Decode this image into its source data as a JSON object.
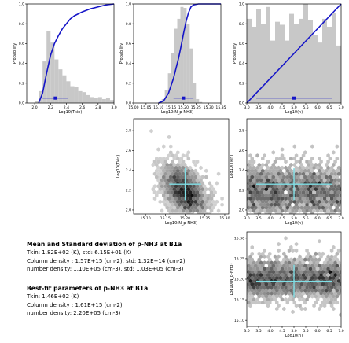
{
  "chart_data": [
    {
      "id": "hist_tkin",
      "type": "histogram+cdf",
      "xlabel": "Log10(Tkin)",
      "ylabel": "Probability",
      "xlim": [
        1.9,
        3.0
      ],
      "ylim": [
        0,
        1.0
      ],
      "xticks": [
        "2.0",
        "2.2",
        "2.4",
        "2.6",
        "2.8",
        "3.0"
      ],
      "yticks": [
        "0.0",
        "0.2",
        "0.4",
        "0.6",
        "0.8",
        "1.0"
      ],
      "bin_edges": [
        1.9,
        1.95,
        2.0,
        2.05,
        2.1,
        2.15,
        2.2,
        2.25,
        2.3,
        2.35,
        2.4,
        2.45,
        2.5,
        2.55,
        2.6,
        2.65,
        2.7,
        2.75,
        2.8,
        2.85,
        2.9,
        2.95,
        3.0
      ],
      "bin_heights": [
        0.0,
        0.0,
        0.02,
        0.12,
        0.42,
        0.73,
        0.61,
        0.44,
        0.34,
        0.28,
        0.22,
        0.17,
        0.16,
        0.12,
        0.11,
        0.08,
        0.06,
        0.05,
        0.06,
        0.04,
        0.05,
        0.03
      ],
      "cdf_x": [
        2.05,
        2.1,
        2.15,
        2.2,
        2.25,
        2.3,
        2.35,
        2.4,
        2.45,
        2.5,
        2.6,
        2.7,
        2.8,
        2.9,
        3.0
      ],
      "cdf_y": [
        0.0,
        0.1,
        0.3,
        0.48,
        0.6,
        0.68,
        0.75,
        0.8,
        0.85,
        0.88,
        0.92,
        0.95,
        0.97,
        0.99,
        1.0
      ],
      "marker": {
        "x": 2.26,
        "err_low": 2.1,
        "err_high": 2.42,
        "y": 0.05
      }
    },
    {
      "id": "hist_n",
      "type": "histogram+cdf",
      "xlabel": "Log10(N_p-NH3)",
      "ylabel": "Probability",
      "xlim": [
        15.0,
        15.35
      ],
      "ylim": [
        0,
        1.0
      ],
      "xticks": [
        "15.00",
        "15.05",
        "15.10",
        "15.15",
        "15.20",
        "15.25",
        "15.30",
        "15.35"
      ],
      "yticks": [
        "0.0",
        "0.2",
        "0.4",
        "0.6",
        "0.8",
        "1.0"
      ],
      "bin_edges": [
        15.0,
        15.0125,
        15.025,
        15.0375,
        15.05,
        15.0625,
        15.075,
        15.0875,
        15.1,
        15.1125,
        15.125,
        15.1375,
        15.15,
        15.1625,
        15.175,
        15.1875,
        15.2,
        15.2125,
        15.225,
        15.2375,
        15.25,
        15.2625,
        15.275,
        15.2875,
        15.3,
        15.3125,
        15.325,
        15.3375,
        15.35
      ],
      "bin_heights": [
        0.0,
        0.0,
        0.0,
        0.0,
        0.0,
        0.0,
        0.0,
        0.0,
        0.01,
        0.04,
        0.13,
        0.3,
        0.5,
        0.75,
        0.85,
        0.97,
        0.96,
        0.8,
        0.55,
        0.2,
        0.04,
        0.01,
        0.0,
        0.0,
        0.0,
        0.0,
        0.0,
        0.0
      ],
      "cdf_x": [
        15.1,
        15.12,
        15.14,
        15.16,
        15.18,
        15.19,
        15.2,
        15.21,
        15.22,
        15.23,
        15.24,
        15.26,
        15.35
      ],
      "cdf_y": [
        0.0,
        0.02,
        0.1,
        0.25,
        0.45,
        0.57,
        0.7,
        0.82,
        0.91,
        0.97,
        0.99,
        1.0,
        1.0
      ],
      "marker": {
        "x": 15.2,
        "err_low": 15.16,
        "err_high": 15.24,
        "y": 0.05
      }
    },
    {
      "id": "hist_dens",
      "type": "histogram+cdf",
      "xlabel": "Log10(n)",
      "ylabel": "Probability",
      "xlim": [
        3.0,
        7.0
      ],
      "ylim": [
        0,
        1.0
      ],
      "xticks": [
        "3.0",
        "3.5",
        "4.0",
        "4.5",
        "5.0",
        "5.5",
        "6.0",
        "6.5",
        "7.0"
      ],
      "yticks": [
        "0.0",
        "0.2",
        "0.4",
        "0.6",
        "0.8",
        "1.0"
      ],
      "bin_edges": [
        3.0,
        3.2,
        3.4,
        3.6,
        3.8,
        4.0,
        4.2,
        4.4,
        4.6,
        4.8,
        5.0,
        5.2,
        5.4,
        5.6,
        5.8,
        6.0,
        6.2,
        6.4,
        6.6,
        6.8,
        7.0
      ],
      "bin_heights": [
        0.85,
        0.77,
        0.95,
        0.8,
        0.97,
        0.63,
        0.82,
        0.79,
        0.63,
        0.9,
        0.8,
        0.85,
        1.0,
        0.84,
        0.69,
        0.61,
        0.85,
        0.77,
        0.91,
        0.58
      ],
      "cdf_x": [
        3.0,
        7.0
      ],
      "cdf_y": [
        0.0,
        1.0
      ],
      "marker": {
        "x": 5.0,
        "err_low": 3.4,
        "err_high": 6.6,
        "y": 0.05
      }
    },
    {
      "id": "scatter_tkin_n",
      "type": "hexbin",
      "xlabel": "Log10(N_p-NH3)",
      "ylabel": "Log10(Tkin)",
      "xlim": [
        15.07,
        15.31
      ],
      "ylim": [
        1.96,
        2.92
      ],
      "xticks": [
        "15.10",
        "15.15",
        "15.20",
        "15.25",
        "15.30"
      ],
      "xtick_values": [
        15.1,
        15.15,
        15.2,
        15.25,
        15.3
      ],
      "yticks": [
        "2.0",
        "2.2",
        "2.4",
        "2.6",
        "2.8"
      ],
      "ytick_values": [
        2.0,
        2.2,
        2.4,
        2.6,
        2.8
      ],
      "cloud": {
        "cx": 15.2,
        "cy": 2.18,
        "sx": 0.028,
        "sy": 0.14,
        "rho": -0.45,
        "n": 2600,
        "seed": 11
      },
      "cross": {
        "x": 15.2,
        "y": 2.26,
        "xlen": 0.04,
        "ylen": 0.16
      }
    },
    {
      "id": "scatter_tkin_dens",
      "type": "hexbin",
      "xlabel": "Log10(n)",
      "ylabel": "Log10(Tkin)",
      "xlim": [
        3.0,
        7.0
      ],
      "ylim": [
        1.96,
        2.92
      ],
      "xticks": [
        "3.0",
        "3.5",
        "4.0",
        "4.5",
        "5.0",
        "5.5",
        "6.0",
        "6.5",
        "7.0"
      ],
      "xtick_values": [
        3.0,
        3.5,
        4.0,
        4.5,
        5.0,
        5.5,
        6.0,
        6.5,
        7.0
      ],
      "yticks": [
        "2.0",
        "2.2",
        "2.4",
        "2.6",
        "2.8"
      ],
      "ytick_values": [
        2.0,
        2.2,
        2.4,
        2.6,
        2.8
      ],
      "cloud": {
        "cx": 5.0,
        "cy": 2.18,
        "sx": 1.3,
        "sy": 0.14,
        "rho": 0.0,
        "uniform_x": true,
        "n": 2200,
        "seed": 23
      },
      "cross": {
        "x": 5.0,
        "y": 2.26,
        "xlen": 1.6,
        "ylen": 0.16
      }
    },
    {
      "id": "scatter_n_dens",
      "type": "hexbin",
      "xlabel": "Log10(n)",
      "ylabel": "Log10(N_p-NH3)",
      "xlim": [
        3.0,
        7.0
      ],
      "ylim": [
        15.085,
        15.315
      ],
      "xticks": [
        "3.0",
        "3.5",
        "4.0",
        "4.5",
        "5.0",
        "5.5",
        "6.0",
        "6.5",
        "7.0"
      ],
      "xtick_values": [
        3.0,
        3.5,
        4.0,
        4.5,
        5.0,
        5.5,
        6.0,
        6.5,
        7.0
      ],
      "yticks": [
        "15.10",
        "15.15",
        "15.20",
        "15.25",
        "15.30"
      ],
      "ytick_values": [
        15.1,
        15.15,
        15.2,
        15.25,
        15.3
      ],
      "cloud": {
        "cx": 5.0,
        "cy": 15.2,
        "sx": 1.3,
        "sy": 0.025,
        "rho": 0.0,
        "uniform_x": true,
        "n": 2400,
        "seed": 37
      },
      "cross": {
        "x": 5.0,
        "y": 15.195,
        "xlen": 1.6,
        "ylen": 0.04
      }
    }
  ],
  "stats": {
    "mean_heading": "Mean and Standard deviation of p-NH3 at B1a",
    "mean_lines": [
      "Tkin: 1.82E+02 (K), std: 6.15E+01 (K)",
      "Column density : 1.57E+15 (cm-2), std: 1.32E+14 (cm-2)",
      "number density: 1.10E+05 (cm-3), std: 1.03E+05 (cm-3)"
    ],
    "best_heading": "Best-fit parameters of p-NH3 at B1a",
    "best_lines": [
      "Tkin: 1.46E+02 (K)",
      "Column density : 1.61E+15 (cm-2)",
      "number density: 2.20E+05 (cm-3)"
    ]
  },
  "colors": {
    "hist_fill": "#c8c8c8",
    "cdf_line": "#1515c8",
    "marker": "#1515c8",
    "cross": "#7fdfe6"
  }
}
